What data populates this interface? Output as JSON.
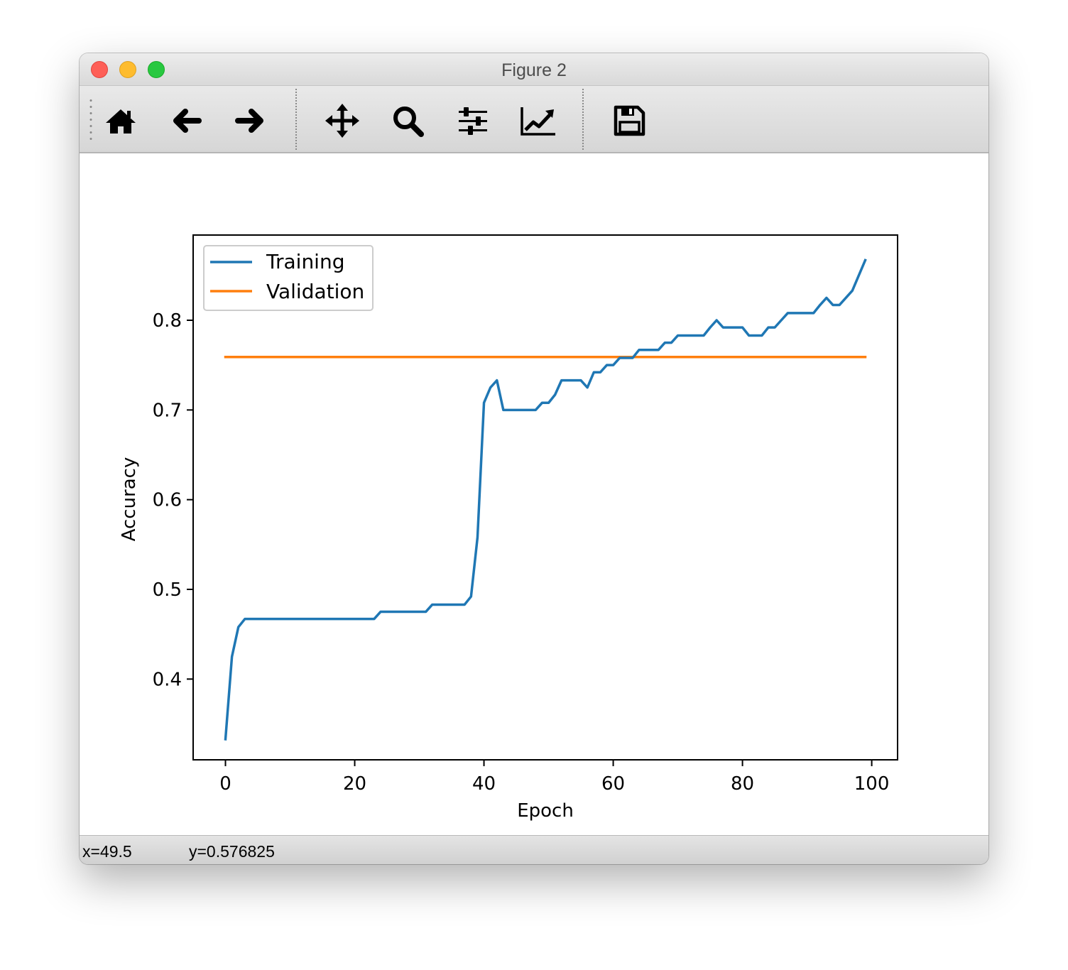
{
  "window": {
    "title": "Figure 2"
  },
  "toolbar": {
    "buttons": [
      {
        "name": "home",
        "icon": "home-icon"
      },
      {
        "name": "back",
        "icon": "arrow-left-icon"
      },
      {
        "name": "forward",
        "icon": "arrow-right-icon"
      },
      {
        "name": "pan",
        "icon": "move-icon"
      },
      {
        "name": "zoom",
        "icon": "magnifier-icon"
      },
      {
        "name": "configure-subplots",
        "icon": "sliders-icon"
      },
      {
        "name": "edit-axes",
        "icon": "chart-line-icon"
      },
      {
        "name": "save",
        "icon": "floppy-disk-icon"
      }
    ]
  },
  "status": {
    "x": "x=49.5",
    "y": "y=0.576825"
  },
  "colors": {
    "training": "#1f77b4",
    "validation": "#ff7f0e"
  },
  "chart_data": {
    "type": "line",
    "title": "",
    "xlabel": "Epoch",
    "ylabel": "Accuracy",
    "xlim": [
      -5,
      104
    ],
    "ylim": [
      0.31,
      0.895
    ],
    "xticks": [
      0,
      20,
      40,
      60,
      80,
      100
    ],
    "xtick_labels": [
      "0",
      "20",
      "40",
      "60",
      "80",
      "100"
    ],
    "yticks": [
      0.4,
      0.5,
      0.6,
      0.7,
      0.8
    ],
    "ytick_labels": [
      "0.4",
      "0.5",
      "0.6",
      "0.7",
      "0.8"
    ],
    "grid": false,
    "legend": "upper-left",
    "series": [
      {
        "name": "Training",
        "x": [
          0,
          1,
          2,
          3,
          4,
          5,
          6,
          7,
          8,
          9,
          10,
          11,
          12,
          13,
          14,
          15,
          16,
          17,
          18,
          19,
          20,
          21,
          22,
          23,
          24,
          25,
          26,
          27,
          28,
          29,
          30,
          31,
          32,
          33,
          34,
          35,
          36,
          37,
          38,
          39,
          40,
          41,
          42,
          43,
          44,
          45,
          46,
          47,
          48,
          49,
          50,
          51,
          52,
          53,
          54,
          55,
          56,
          57,
          58,
          59,
          60,
          61,
          62,
          63,
          64,
          65,
          66,
          67,
          68,
          69,
          70,
          71,
          72,
          73,
          74,
          75,
          76,
          77,
          78,
          79,
          80,
          81,
          82,
          83,
          84,
          85,
          86,
          87,
          88,
          89,
          90,
          91,
          92,
          93,
          94,
          95,
          96,
          97,
          98,
          99
        ],
        "values": [
          0.333,
          0.425,
          0.458,
          0.467,
          0.467,
          0.467,
          0.467,
          0.467,
          0.467,
          0.467,
          0.467,
          0.467,
          0.467,
          0.467,
          0.467,
          0.467,
          0.467,
          0.467,
          0.467,
          0.467,
          0.467,
          0.467,
          0.467,
          0.467,
          0.475,
          0.475,
          0.475,
          0.475,
          0.475,
          0.475,
          0.475,
          0.475,
          0.483,
          0.483,
          0.483,
          0.483,
          0.483,
          0.483,
          0.492,
          0.558,
          0.708,
          0.725,
          0.733,
          0.7,
          0.7,
          0.7,
          0.7,
          0.7,
          0.7,
          0.708,
          0.708,
          0.717,
          0.733,
          0.733,
          0.733,
          0.733,
          0.725,
          0.742,
          0.742,
          0.75,
          0.75,
          0.758,
          0.758,
          0.758,
          0.767,
          0.767,
          0.767,
          0.767,
          0.775,
          0.775,
          0.783,
          0.783,
          0.783,
          0.783,
          0.783,
          0.792,
          0.8,
          0.792,
          0.792,
          0.792,
          0.792,
          0.783,
          0.783,
          0.783,
          0.792,
          0.792,
          0.8,
          0.808,
          0.808,
          0.808,
          0.808,
          0.808,
          0.817,
          0.825,
          0.817,
          0.817,
          0.825,
          0.833,
          0.85,
          0.867
        ]
      },
      {
        "name": "Validation",
        "x": [
          0,
          99
        ],
        "values": [
          0.759,
          0.759
        ]
      }
    ]
  }
}
